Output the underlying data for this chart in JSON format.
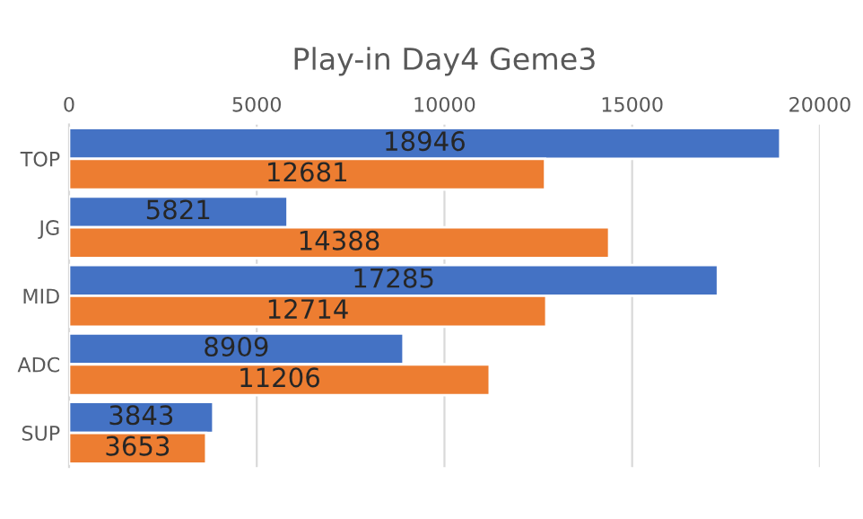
{
  "chart_data": {
    "type": "bar",
    "orientation": "horizontal",
    "title": "Play-in Day4 Geme3",
    "categories": [
      "TOP",
      "JG",
      "MID",
      "ADC",
      "SUP"
    ],
    "series": [
      {
        "color": "#4472c4",
        "values": [
          18946,
          5821,
          17285,
          8909,
          3843
        ]
      },
      {
        "color": "#ed7d31",
        "values": [
          12681,
          14388,
          12714,
          11206,
          3653
        ]
      }
    ],
    "xlim": [
      0,
      20000
    ],
    "xticks": [
      0,
      5000,
      10000,
      15000,
      20000
    ],
    "grid": "x",
    "data_labels": true
  }
}
